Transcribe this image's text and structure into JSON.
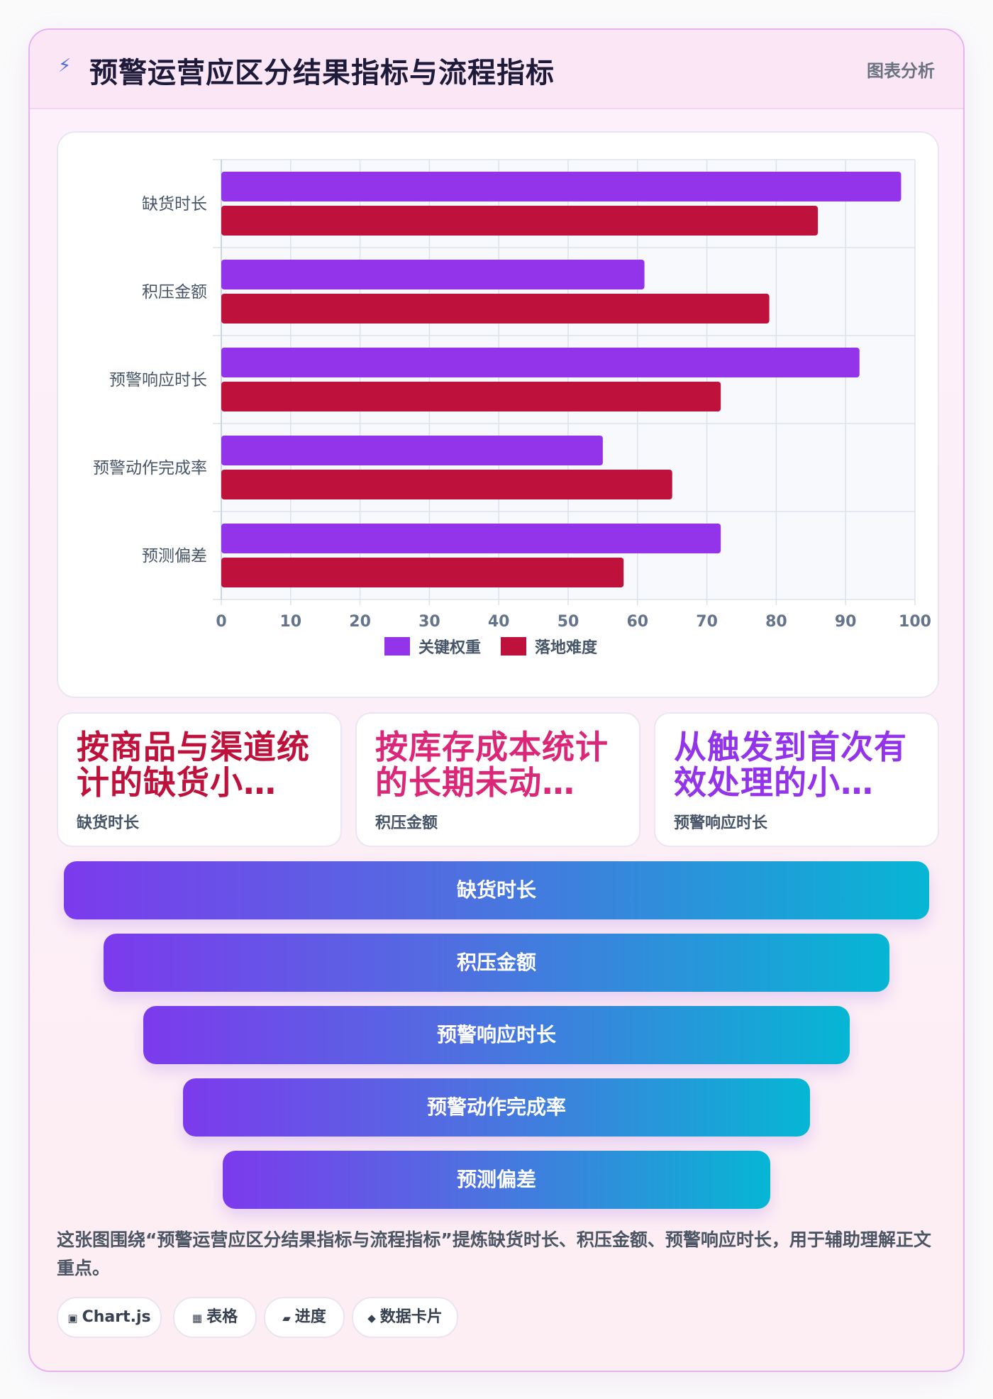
{
  "header": {
    "icon": "lightning-icon",
    "title": "预警运营应区分结果指标与流程指标",
    "tag": "图表分析"
  },
  "chart_data": {
    "type": "bar",
    "orientation": "horizontal",
    "categories": [
      "缺货时长",
      "积压金额",
      "预警响应时长",
      "预警动作完成率",
      "预测偏差"
    ],
    "series": [
      {
        "name": "关键权重",
        "color": "#9333ea",
        "values": [
          98,
          61,
          92,
          55,
          72
        ]
      },
      {
        "name": "落地难度",
        "color": "#be123c",
        "values": [
          86,
          79,
          72,
          65,
          58
        ]
      }
    ],
    "xlim": [
      0,
      100
    ],
    "xticks": [
      0,
      10,
      20,
      30,
      40,
      50,
      60,
      70,
      80,
      90,
      100
    ],
    "grid": true,
    "legend": "bottom"
  },
  "kpis": [
    {
      "text": "按商品与渠道统计的缺货小…",
      "label": "缺货时长",
      "color": "#be123c"
    },
    {
      "text": "按库存成本统计的长期未动…",
      "label": "积压金额",
      "color": "#db2777"
    },
    {
      "text": "从触发到首次有效处理的小…",
      "label": "预警响应时长",
      "color": "#9333ea"
    }
  ],
  "funnel": [
    "缺货时长",
    "积压金额",
    "预警响应时长",
    "预警动作完成率",
    "预测偏差"
  ],
  "description": "这张图围绕“预警运营应区分结果指标与流程指标”提炼缺货时长、积压金额、预警响应时长，用于辅助理解正文重点。",
  "chips": [
    {
      "icon": "▣",
      "label": "Chart.js"
    },
    {
      "icon": "▦",
      "label": "表格"
    },
    {
      "icon": "▰",
      "label": "进度"
    },
    {
      "icon": "◆",
      "label": "数据卡片"
    }
  ]
}
